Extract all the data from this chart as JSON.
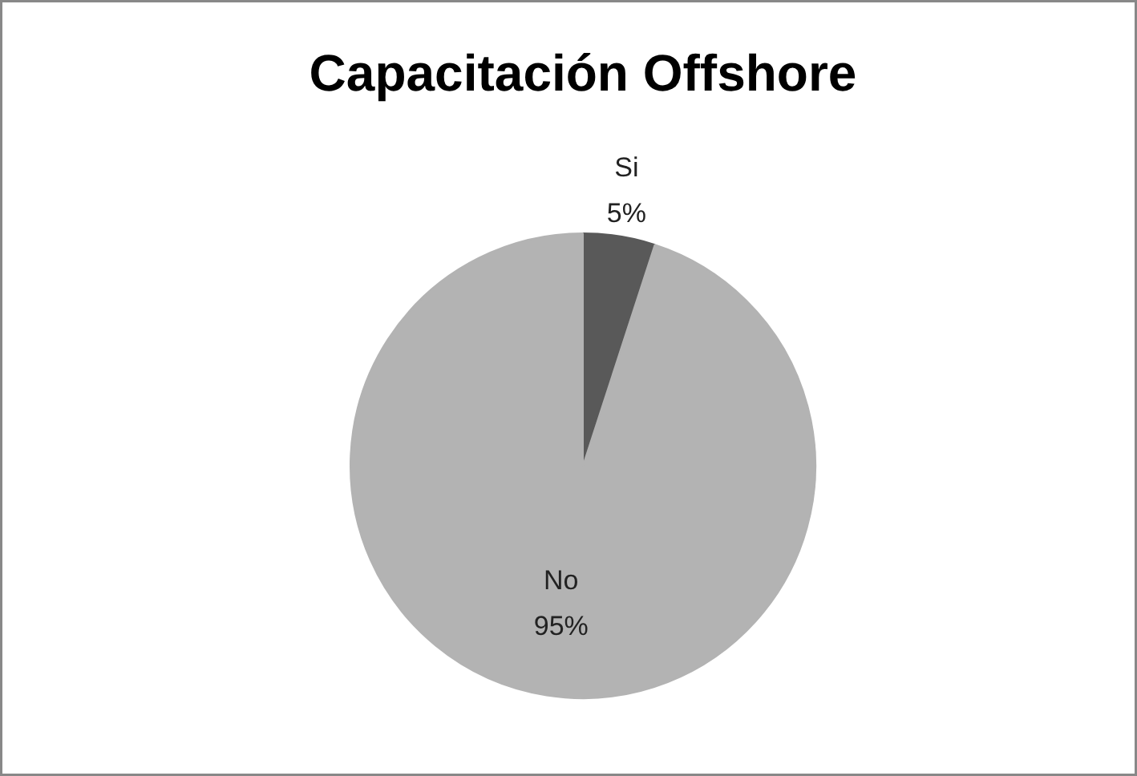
{
  "chart_data": {
    "type": "pie",
    "title": "Capacitación Offshore",
    "categories": [
      "Si",
      "No"
    ],
    "values": [
      5,
      95
    ],
    "colors": [
      "#595959",
      "#b3b3b3"
    ],
    "value_labels": [
      "5%",
      "95%"
    ]
  }
}
